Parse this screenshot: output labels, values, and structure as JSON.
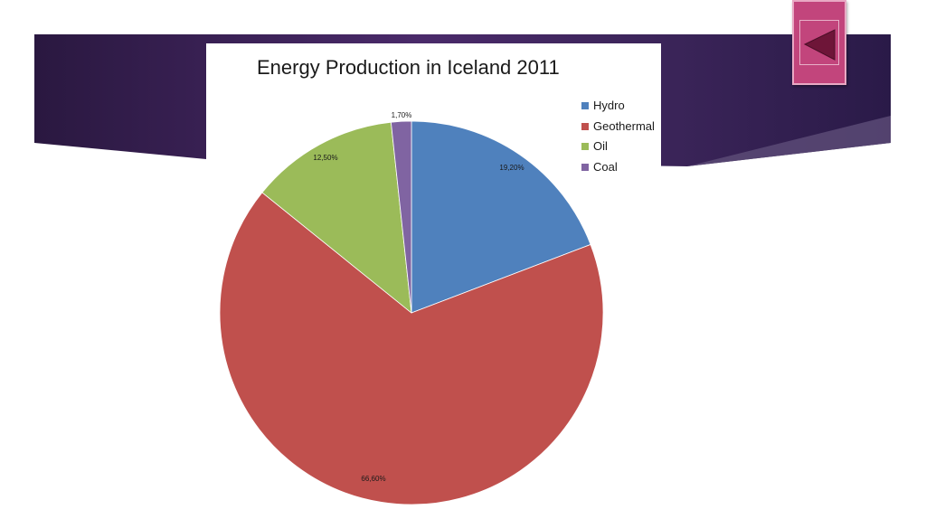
{
  "colors": {
    "hydro": "#4f81bd",
    "geothermal": "#c0504d",
    "oil": "#9bbb59",
    "coal": "#8064a2",
    "banner": "#3a2156",
    "nav_button": "#c2457c"
  },
  "nav": {
    "icon": "triangle-left-icon"
  },
  "chart_data": {
    "type": "pie",
    "title": "Energy Production in Iceland 2011",
    "categories": [
      "Hydro",
      "Geothermal",
      "Oil",
      "Coal"
    ],
    "values": [
      19.2,
      66.6,
      12.5,
      1.7
    ],
    "data_labels": [
      "19,20%",
      "66,60%",
      "12,50%",
      "1,70%"
    ],
    "legend_position": "right",
    "start_angle": "top, clockwise"
  }
}
